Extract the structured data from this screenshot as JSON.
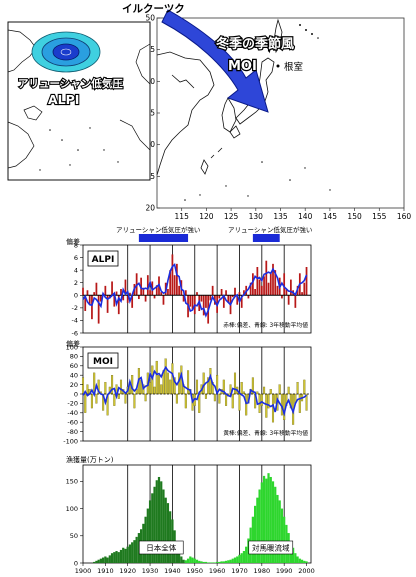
{
  "map": {
    "top_label": "イルクーツク",
    "title_line1": "冬季の季節風",
    "title_line2": "MOI",
    "nemuro_label": "根室",
    "inset_label_line1": "アリューシャン低気圧",
    "inset_label_line2": "ALPI",
    "lon_ticks": [
      "115",
      "120",
      "125",
      "130",
      "135",
      "140",
      "145",
      "150",
      "155",
      "160"
    ],
    "lat_ticks": [
      "20",
      "25",
      "30",
      "35",
      "40",
      "45",
      "50"
    ],
    "colors": {
      "arrow": "#2e46d8",
      "arrow_edge": "#0a1a8a",
      "low_core": "#1a3ccc",
      "low_ring": "#3fd0e0"
    }
  },
  "strong_periods": {
    "label": "アリューシャン低気圧が強い",
    "periods": [
      [
        1925,
        1947
      ],
      [
        1976,
        1988
      ]
    ],
    "color": "#1a2ad6"
  },
  "chart_data": [
    {
      "type": "bar",
      "id": "alpi",
      "box_label": "ALPI",
      "ylabel": "偏差",
      "ylim": [
        -6,
        8
      ],
      "yticks": [
        -6,
        -4,
        -2,
        0,
        2,
        4,
        6,
        8
      ],
      "xlim": [
        1900,
        2002
      ],
      "grid_years": [
        1920,
        1930,
        1940,
        1950,
        1960,
        1970,
        1980,
        1990
      ],
      "annotation": "赤棒:偏差、青線: 3年移動平均値",
      "bar_color": "#b81818",
      "line_color": "#1b2ee0",
      "years": [
        1900,
        2000
      ],
      "values": [
        1.2,
        -2.5,
        0.8,
        -1.5,
        -3.8,
        0.5,
        2.0,
        -4.5,
        -1.0,
        0.3,
        1.5,
        -2.8,
        -0.5,
        2.2,
        -1.8,
        0.6,
        -3.0,
        1.0,
        -0.8,
        2.5,
        -1.2,
        0.4,
        -2.0,
        1.8,
        3.5,
        -0.6,
        2.8,
        1.2,
        -1.0,
        3.2,
        0.8,
        2.2,
        -0.5,
        1.6,
        3.0,
        0.5,
        -1.5,
        2.0,
        1.0,
        4.0,
        6.5,
        3.2,
        5.0,
        1.5,
        2.4,
        -1.0,
        0.8,
        -3.5,
        -1.8,
        -2.2,
        -3.0,
        0.5,
        -2.5,
        -1.0,
        -3.2,
        -2.0,
        -4.5,
        -0.8,
        1.5,
        -1.5,
        -2.8,
        -0.5,
        1.0,
        -2.0,
        0.8,
        -1.2,
        -3.0,
        -0.3,
        1.2,
        -1.5,
        0.5,
        -2.0,
        0.8,
        1.5,
        -0.5,
        2.0,
        3.5,
        1.0,
        4.5,
        2.5,
        1.5,
        3.0,
        5.5,
        2.0,
        3.5,
        5.0,
        4.0,
        1.5,
        2.8,
        -0.5,
        3.5,
        1.0,
        -1.5,
        2.5,
        0.8,
        -2.0,
        1.5,
        3.5,
        0.5,
        2.0,
        4.5
      ]
    },
    {
      "type": "bar",
      "id": "moi",
      "box_label": "MOI",
      "ylabel": "偏差",
      "ylim": [
        -100,
        100
      ],
      "yticks": [
        -100,
        -80,
        -60,
        -40,
        -20,
        0,
        20,
        40,
        60,
        80,
        100
      ],
      "xlim": [
        1900,
        2002
      ],
      "grid_years": [
        1920,
        1930,
        1940,
        1950,
        1960,
        1970,
        1980,
        1990
      ],
      "annotation": "黄棒:偏差、青線: 3年移動平均値",
      "bar_color": "#cfc432",
      "bar_edge": "#6a6410",
      "line_color": "#1b2ee0",
      "years": [
        1900,
        2000
      ],
      "values": [
        35,
        -40,
        20,
        10,
        -30,
        45,
        -20,
        30,
        5,
        -35,
        25,
        -45,
        15,
        40,
        -25,
        20,
        -10,
        30,
        10,
        -20,
        15,
        25,
        40,
        -30,
        10,
        55,
        30,
        20,
        -15,
        45,
        25,
        60,
        15,
        70,
        40,
        20,
        50,
        75,
        45,
        30,
        65,
        35,
        -20,
        45,
        60,
        20,
        -30,
        50,
        10,
        -35,
        -25,
        30,
        -40,
        20,
        45,
        -10,
        35,
        55,
        25,
        -15,
        40,
        -20,
        10,
        30,
        -25,
        -5,
        20,
        -30,
        45,
        15,
        -35,
        25,
        5,
        -45,
        -20,
        10,
        35,
        -30,
        5,
        -40,
        -25,
        15,
        -50,
        -30,
        10,
        -60,
        -20,
        -35,
        20,
        -45,
        -55,
        -25,
        15,
        -30,
        -65,
        -20,
        25,
        -40,
        -15,
        30,
        -35
      ]
    },
    {
      "type": "bar",
      "id": "catch",
      "ylabel": "漁獲量(万トン)",
      "ylim": [
        0,
        180
      ],
      "yticks": [
        0,
        50,
        100,
        150
      ],
      "xlim": [
        1900,
        2002
      ],
      "xticks": [
        1900,
        1910,
        1920,
        1930,
        1940,
        1950,
        1960,
        1970,
        1980,
        1990,
        2000
      ],
      "grid_years": [
        1920,
        1930,
        1940,
        1950,
        1960,
        1970,
        1980,
        1990
      ],
      "series": [
        {
          "name": "日本全体",
          "color": "#1f7a1f",
          "years": [
            1905,
            1945
          ],
          "values": [
            2,
            4,
            6,
            8,
            10,
            12,
            10,
            14,
            18,
            20,
            22,
            20,
            24,
            28,
            26,
            30,
            34,
            38,
            42,
            48,
            55,
            62,
            72,
            85,
            100,
            115,
            128,
            140,
            152,
            158,
            150,
            135,
            120,
            110,
            95,
            80,
            60,
            40,
            22,
            12,
            6
          ]
        },
        {
          "name": "対馬暖流域",
          "color": "#2ed62e",
          "years": [
            1946,
            2000
          ],
          "values": [
            5,
            8,
            12,
            10,
            8,
            6,
            4,
            3,
            2,
            2,
            1,
            1,
            1,
            1,
            2,
            2,
            3,
            3,
            4,
            5,
            6,
            8,
            10,
            12,
            15,
            18,
            22,
            30,
            45,
            65,
            85,
            105,
            120,
            135,
            148,
            160,
            155,
            165,
            158,
            150,
            140,
            125,
            115,
            100,
            85,
            70,
            55,
            40,
            28,
            18,
            12,
            8,
            6,
            4,
            3
          ]
        }
      ]
    }
  ]
}
